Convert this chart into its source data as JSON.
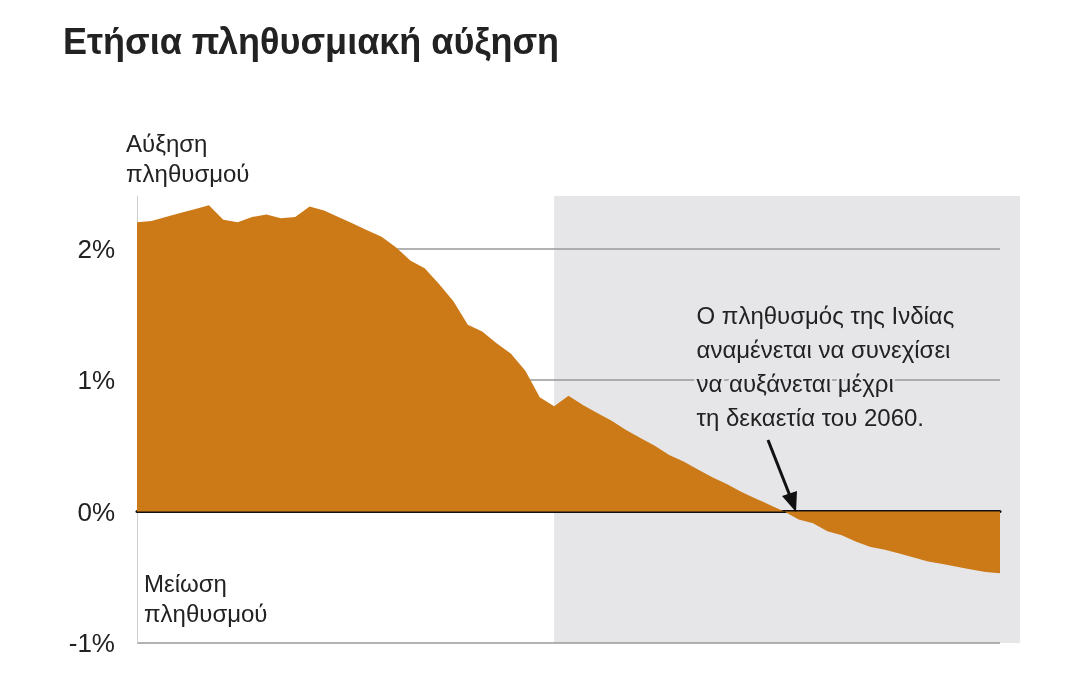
{
  "chart_data": {
    "type": "area",
    "title": "Ετήσια πληθυσμιακή αύξηση",
    "categories": [
      null,
      null,
      null,
      null,
      null,
      null,
      null,
      null,
      null,
      null,
      null,
      null,
      null,
      null,
      null,
      null,
      null,
      null,
      null,
      null,
      null,
      null,
      null,
      null,
      null,
      null,
      null,
      null,
      null,
      null,
      null,
      null,
      null,
      null,
      null,
      null,
      null,
      null,
      null,
      null,
      null,
      null,
      null,
      null,
      null,
      null,
      null,
      null,
      null,
      null,
      null,
      null,
      null,
      null,
      null,
      null,
      null,
      null,
      null,
      null,
      null
    ],
    "series": [
      {
        "color": "#cc7a17",
        "values": [
          2.2,
          2.21,
          2.24,
          2.27,
          2.3,
          2.33,
          2.22,
          2.2,
          2.24,
          2.26,
          2.23,
          2.24,
          2.32,
          2.29,
          2.24,
          2.19,
          2.14,
          2.09,
          2.01,
          1.91,
          1.85,
          1.73,
          1.6,
          1.42,
          1.37,
          1.28,
          1.2,
          1.07,
          0.87,
          0.8,
          0.88,
          0.81,
          0.75,
          0.69,
          0.62,
          0.56,
          0.5,
          0.43,
          0.38,
          0.32,
          0.26,
          0.21,
          0.15,
          0.1,
          0.05,
          0.0,
          -0.06,
          -0.09,
          -0.15,
          -0.18,
          -0.23,
          -0.27,
          -0.29,
          -0.32,
          -0.35,
          -0.38,
          -0.4,
          -0.42,
          -0.44,
          -0.46,
          -0.47
        ]
      }
    ],
    "ylim": [
      -1,
      2.4
    ],
    "yticks": [
      {
        "value": -1,
        "label": "-1%"
      },
      {
        "value": 0,
        "label": "0%"
      },
      {
        "value": 1,
        "label": "1%"
      },
      {
        "value": 2,
        "label": "2%"
      }
    ],
    "grid": "y",
    "annotations": [
      "Αύξηση\nπληθυσμού",
      "Μείωση\nπληθυσμού",
      "Ο πληθυσμός της Ινδίας\nαναμένεται να συνεχίσει\nνα αυξάνεται μέχρι\nτη δεκαετία του 2060."
    ]
  }
}
